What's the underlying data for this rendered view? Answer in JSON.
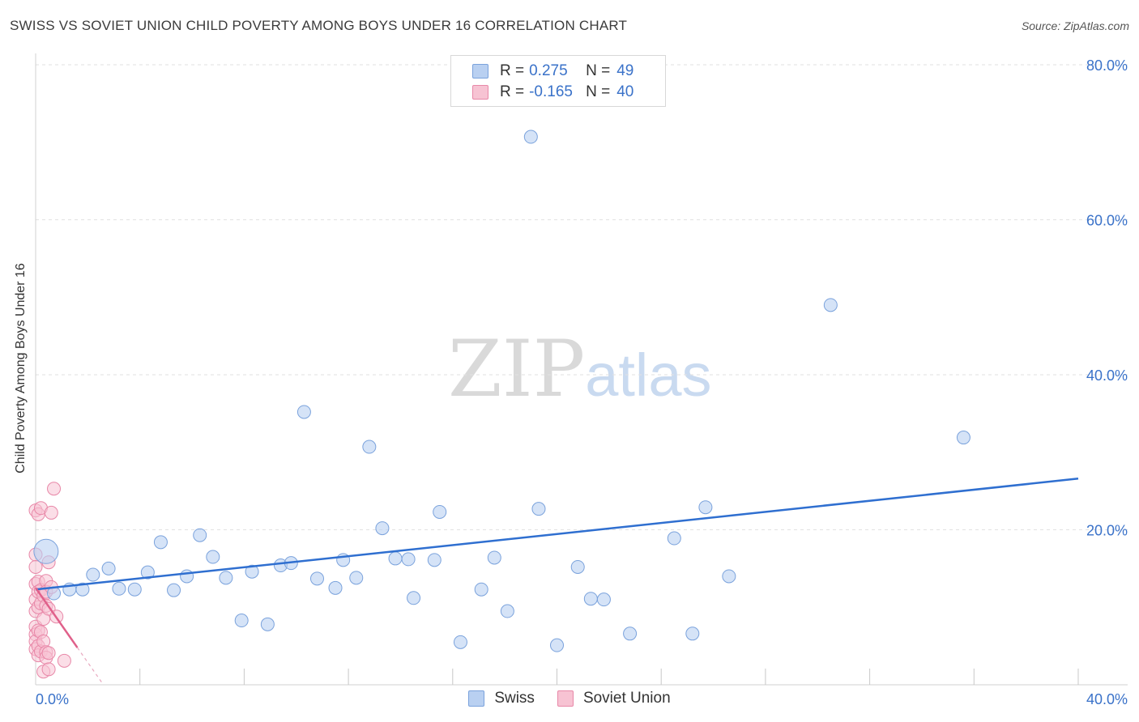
{
  "header": {
    "title": "SWISS VS SOVIET UNION CHILD POVERTY AMONG BOYS UNDER 16 CORRELATION CHART",
    "source": "Source: ZipAtlas.com"
  },
  "watermark": {
    "zip": "ZIP",
    "atlas": "atlas"
  },
  "legend": {
    "rows": [
      {
        "r_label": "R =",
        "r_value": "0.275",
        "n_label": "N =",
        "n_value": "49"
      },
      {
        "r_label": "R =",
        "r_value": "-0.165",
        "n_label": "N =",
        "n_value": "40"
      }
    ]
  },
  "bottom_legend": {
    "swiss": "Swiss",
    "soviet": "Soviet Union"
  },
  "colors": {
    "swiss_fill": "#b9d0f1",
    "swiss_stroke": "#7aa2dc",
    "swiss_line": "#2f6fd0",
    "soviet_fill": "#f7c3d3",
    "soviet_stroke": "#e888a8",
    "soviet_line": "#e0608a",
    "tick_label": "#3a72c9",
    "grid": "#e2e2e2"
  },
  "chart_data": {
    "type": "scatter",
    "title": "SWISS VS SOVIET UNION CHILD POVERTY AMONG BOYS UNDER 16 CORRELATION CHART",
    "xlabel": "",
    "ylabel": "Child Poverty Among Boys Under 16",
    "xlim": [
      0,
      40
    ],
    "ylim": [
      0,
      80
    ],
    "x_tick_labels": [
      "0.0%",
      "40.0%"
    ],
    "y_ticks": [
      20,
      40,
      60,
      80
    ],
    "y_tick_labels": [
      "20.0%",
      "40.0%",
      "60.0%",
      "80.0%"
    ],
    "grid": true,
    "legend_position": "top-center",
    "series": [
      {
        "name": "Swiss",
        "r": 0.275,
        "n": 49,
        "trend": {
          "x": [
            0,
            40
          ],
          "y": [
            12.3,
            26.6
          ]
        },
        "points": [
          [
            0.4,
            17.2
          ],
          [
            0.7,
            11.8
          ],
          [
            1.3,
            12.3
          ],
          [
            1.8,
            12.3
          ],
          [
            2.2,
            14.2
          ],
          [
            2.8,
            15.0
          ],
          [
            3.2,
            12.4
          ],
          [
            3.8,
            12.3
          ],
          [
            4.3,
            14.5
          ],
          [
            4.8,
            18.4
          ],
          [
            5.3,
            12.2
          ],
          [
            5.8,
            14.0
          ],
          [
            6.3,
            19.3
          ],
          [
            6.8,
            16.5
          ],
          [
            7.3,
            13.8
          ],
          [
            7.9,
            8.3
          ],
          [
            8.3,
            14.6
          ],
          [
            8.9,
            7.8
          ],
          [
            9.4,
            15.4
          ],
          [
            9.8,
            15.7
          ],
          [
            10.3,
            35.2
          ],
          [
            10.8,
            13.7
          ],
          [
            11.5,
            12.5
          ],
          [
            11.8,
            16.1
          ],
          [
            12.3,
            13.8
          ],
          [
            12.8,
            30.7
          ],
          [
            13.3,
            20.2
          ],
          [
            13.8,
            16.3
          ],
          [
            14.3,
            16.2
          ],
          [
            14.5,
            11.2
          ],
          [
            15.3,
            16.1
          ],
          [
            15.5,
            22.3
          ],
          [
            16.3,
            5.5
          ],
          [
            17.1,
            12.3
          ],
          [
            17.6,
            16.4
          ],
          [
            18.1,
            9.5
          ],
          [
            19.0,
            70.7
          ],
          [
            19.3,
            22.7
          ],
          [
            20.0,
            5.1
          ],
          [
            20.8,
            15.2
          ],
          [
            21.3,
            11.1
          ],
          [
            21.8,
            11.0
          ],
          [
            22.8,
            6.6
          ],
          [
            24.5,
            18.9
          ],
          [
            25.2,
            6.6
          ],
          [
            25.7,
            22.9
          ],
          [
            26.6,
            14.0
          ],
          [
            30.5,
            49.0
          ],
          [
            35.6,
            31.9
          ]
        ]
      },
      {
        "name": "Soviet Union",
        "r": -0.165,
        "n": 40,
        "trend": {
          "x": [
            0,
            1.6
          ],
          "y": [
            12.5,
            4.8
          ]
        },
        "trend_dashed": {
          "x": [
            1.6,
            2.6
          ],
          "y": [
            4.8,
            0
          ]
        },
        "points": [
          [
            0.0,
            22.5
          ],
          [
            0.0,
            16.8
          ],
          [
            0.0,
            15.2
          ],
          [
            0.0,
            13.0
          ],
          [
            0.0,
            11.0
          ],
          [
            0.0,
            9.5
          ],
          [
            0.0,
            7.5
          ],
          [
            0.0,
            6.5
          ],
          [
            0.0,
            5.6
          ],
          [
            0.0,
            4.6
          ],
          [
            0.1,
            22.0
          ],
          [
            0.1,
            13.3
          ],
          [
            0.1,
            12.0
          ],
          [
            0.1,
            10.0
          ],
          [
            0.1,
            7.0
          ],
          [
            0.1,
            5.0
          ],
          [
            0.1,
            3.8
          ],
          [
            0.2,
            22.8
          ],
          [
            0.2,
            12.2
          ],
          [
            0.2,
            10.5
          ],
          [
            0.2,
            6.8
          ],
          [
            0.2,
            4.3
          ],
          [
            0.3,
            11.5
          ],
          [
            0.3,
            8.5
          ],
          [
            0.3,
            5.6
          ],
          [
            0.3,
            1.7
          ],
          [
            0.4,
            13.4
          ],
          [
            0.4,
            12.0
          ],
          [
            0.4,
            10.2
          ],
          [
            0.4,
            4.2
          ],
          [
            0.4,
            3.5
          ],
          [
            0.5,
            15.8
          ],
          [
            0.5,
            9.8
          ],
          [
            0.5,
            4.1
          ],
          [
            0.5,
            2.0
          ],
          [
            0.6,
            22.2
          ],
          [
            0.6,
            12.6
          ],
          [
            0.7,
            25.3
          ],
          [
            0.8,
            8.8
          ],
          [
            1.1,
            3.1
          ]
        ]
      }
    ]
  }
}
